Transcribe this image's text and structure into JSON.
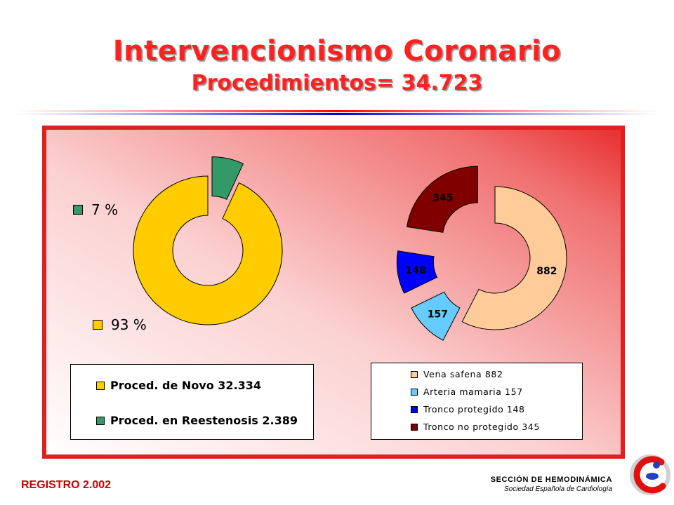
{
  "header": {
    "title": "Intervencionismo Coronario",
    "subtitle": "Procedimientos= 34.723"
  },
  "colors": {
    "novo": "#ffcc00",
    "reestenosis": "#339966",
    "vena_safena": "#ffcc99",
    "arteria_mamaria": "#66ccff",
    "tronco_protegido": "#0000ff",
    "tronco_no_protegido": "#800000",
    "title_red": "#ff2020"
  },
  "chart_data": [
    {
      "type": "pie",
      "variant": "doughnut-exploded",
      "slices": [
        {
          "key": "reestenosis",
          "legend": "Proced. en Reestenosis  2.389",
          "percent_label": "7 %",
          "value": 2389,
          "color": "#339966",
          "exploded": true
        },
        {
          "key": "novo",
          "legend": "Proced. de Novo 32.334",
          "percent_label": "93 %",
          "value": 32334,
          "color": "#ffcc00",
          "exploded": false
        }
      ],
      "legend_position": "bottom"
    },
    {
      "type": "pie",
      "variant": "doughnut-exploded",
      "slices": [
        {
          "key": "vena_safena",
          "legend": "Vena safena 882",
          "data_label": "882",
          "value": 882,
          "color": "#ffcc99",
          "exploded": false
        },
        {
          "key": "arteria_mamaria",
          "legend": "Arteria mamaria  157",
          "data_label": "157",
          "value": 157,
          "color": "#66ccff",
          "exploded": true
        },
        {
          "key": "tronco_protegido",
          "legend": "Tronco protegido  148",
          "data_label": "148",
          "value": 148,
          "color": "#0000ff",
          "exploded": true
        },
        {
          "key": "tronco_no_protegido",
          "legend": "Tronco no protegido  345",
          "data_label": "345",
          "value": 345,
          "color": "#800000",
          "exploded": true
        }
      ],
      "legend_position": "bottom"
    }
  ],
  "footer": {
    "registro": "REGISTRO 2.002",
    "seccion": "SECCIÓN DE HEMODINÁMICA",
    "sociedad": "Sociedad Española de Cardiología"
  },
  "logo_icon": "sec-cardiology-logo"
}
